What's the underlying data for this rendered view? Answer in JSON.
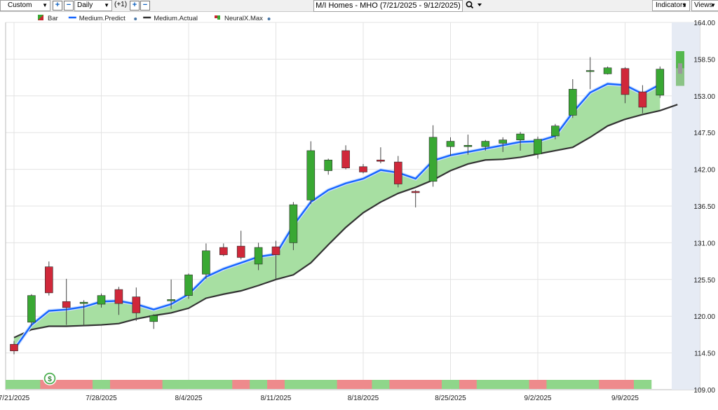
{
  "toolbar": {
    "period": "Custom",
    "interval": "Daily",
    "offset": "(+1)",
    "title": "M/I Homes - MHO (7/21/2025 - 9/12/2025)",
    "indicators": "Indicators",
    "views": "Views",
    "dropdown_glyph": "▼"
  },
  "chart_data": {
    "type": "candlestick",
    "symbol": "MHO",
    "legend": [
      {
        "name": "Bar",
        "color": "#c8272f"
      },
      {
        "name": "Medium.Predict",
        "color": "#1565ff"
      },
      {
        "name": "Medium.Actual",
        "color": "#333333"
      },
      {
        "name": "NeuralX.Max",
        "color": "#39a833"
      }
    ],
    "y_axis": {
      "min": 109.0,
      "max": 164.0,
      "ticks": [
        "164.00",
        "158.50",
        "153.00",
        "147.50",
        "142.00",
        "136.50",
        "131.00",
        "125.50",
        "120.00",
        "114.50",
        "109.00"
      ]
    },
    "x_axis": {
      "ticks": [
        "7/21/2025",
        "7/28/2025",
        "8/4/2025",
        "8/11/2025",
        "8/18/2025",
        "8/25/2025",
        "9/2/2025",
        "9/9/2025"
      ]
    },
    "bars": [
      {
        "date": "7/21/2025",
        "o": 115.8,
        "h": 116.3,
        "l": 114.3,
        "c": 114.8
      },
      {
        "date": "7/22/2025",
        "o": 119.1,
        "h": 123.3,
        "l": 118.5,
        "c": 123.1
      },
      {
        "date": "7/23/2025",
        "o": 127.4,
        "h": 128.2,
        "l": 123.1,
        "c": 123.5
      },
      {
        "date": "7/24/2025",
        "o": 122.2,
        "h": 125.6,
        "l": 118.7,
        "c": 121.3
      },
      {
        "date": "7/25/2025",
        "o": 121.9,
        "h": 122.4,
        "l": 118.6,
        "c": 122.1
      },
      {
        "date": "7/28/2025",
        "o": 121.8,
        "h": 123.4,
        "l": 121.3,
        "c": 123.1
      },
      {
        "date": "7/29/2025",
        "o": 124.0,
        "h": 124.4,
        "l": 120.2,
        "c": 121.9
      },
      {
        "date": "7/30/2025",
        "o": 122.9,
        "h": 124.3,
        "l": 119.3,
        "c": 120.5
      },
      {
        "date": "7/31/2025",
        "o": 119.2,
        "h": 120.3,
        "l": 118.1,
        "c": 120.1
      },
      {
        "date": "8/1/2025",
        "o": 122.3,
        "h": 125.5,
        "l": 121.1,
        "c": 122.5
      },
      {
        "date": "8/4/2025",
        "o": 123.1,
        "h": 126.4,
        "l": 122.6,
        "c": 126.2
      },
      {
        "date": "8/5/2025",
        "o": 126.3,
        "h": 130.9,
        "l": 125.6,
        "c": 129.8
      },
      {
        "date": "8/6/2025",
        "o": 130.3,
        "h": 130.9,
        "l": 129.0,
        "c": 129.2
      },
      {
        "date": "8/7/2025",
        "o": 130.5,
        "h": 132.8,
        "l": 128.5,
        "c": 128.8
      },
      {
        "date": "8/8/2025",
        "o": 127.8,
        "h": 131.0,
        "l": 126.9,
        "c": 130.3
      },
      {
        "date": "8/11/2025",
        "o": 130.4,
        "h": 131.3,
        "l": 125.6,
        "c": 129.2
      },
      {
        "date": "8/12/2025",
        "o": 131.0,
        "h": 137.1,
        "l": 129.9,
        "c": 136.7
      },
      {
        "date": "8/13/2025",
        "o": 137.4,
        "h": 146.2,
        "l": 136.8,
        "c": 144.8
      },
      {
        "date": "8/14/2025",
        "o": 141.8,
        "h": 143.6,
        "l": 141.2,
        "c": 143.4
      },
      {
        "date": "8/15/2025",
        "o": 144.8,
        "h": 145.6,
        "l": 142.0,
        "c": 142.2
      },
      {
        "date": "8/18/2025",
        "o": 142.4,
        "h": 142.8,
        "l": 141.4,
        "c": 141.6
      },
      {
        "date": "8/19/2025",
        "o": 143.4,
        "h": 145.3,
        "l": 142.9,
        "c": 143.2
      },
      {
        "date": "8/20/2025",
        "o": 143.1,
        "h": 144.0,
        "l": 139.3,
        "c": 139.8
      },
      {
        "date": "8/21/2025",
        "o": 138.7,
        "h": 138.9,
        "l": 136.3,
        "c": 138.5
      },
      {
        "date": "8/22/2025",
        "o": 140.2,
        "h": 148.6,
        "l": 139.4,
        "c": 146.8
      },
      {
        "date": "8/25/2025",
        "o": 145.4,
        "h": 146.8,
        "l": 144.0,
        "c": 146.2
      },
      {
        "date": "8/26/2025",
        "o": 145.4,
        "h": 147.2,
        "l": 144.2,
        "c": 145.6
      },
      {
        "date": "8/27/2025",
        "o": 145.4,
        "h": 146.4,
        "l": 144.8,
        "c": 146.2
      },
      {
        "date": "8/28/2025",
        "o": 145.9,
        "h": 146.8,
        "l": 144.6,
        "c": 146.4
      },
      {
        "date": "8/29/2025",
        "o": 146.4,
        "h": 147.6,
        "l": 144.8,
        "c": 147.3
      },
      {
        "date": "9/2/2025",
        "o": 144.3,
        "h": 146.9,
        "l": 143.6,
        "c": 146.5
      },
      {
        "date": "9/3/2025",
        "o": 147.0,
        "h": 148.8,
        "l": 146.5,
        "c": 148.5
      },
      {
        "date": "9/4/2025",
        "o": 150.1,
        "h": 155.5,
        "l": 149.7,
        "c": 154.0
      },
      {
        "date": "9/5/2025",
        "o": 156.8,
        "h": 158.8,
        "l": 154.0,
        "c": 156.8
      },
      {
        "date": "9/8/2025",
        "o": 156.3,
        "h": 157.4,
        "l": 156.2,
        "c": 157.2
      },
      {
        "date": "9/9/2025",
        "o": 157.1,
        "h": 157.3,
        "l": 151.9,
        "c": 153.2
      },
      {
        "date": "9/10/2025",
        "o": 153.6,
        "h": 154.6,
        "l": 150.4,
        "c": 151.3
      },
      {
        "date": "9/11/2025",
        "o": 153.1,
        "h": 157.4,
        "l": 152.7,
        "c": 157.0
      }
    ],
    "neuralx_max_bar": {
      "o": 154.5,
      "c": 159.7,
      "h": 159.7,
      "l": 154.5
    },
    "medium_predict": [
      115.0,
      118.7,
      120.8,
      121.0,
      121.4,
      122.2,
      122.3,
      121.8,
      121.0,
      121.8,
      123.3,
      125.9,
      127.1,
      128.0,
      128.9,
      129.3,
      133.6,
      137.1,
      138.9,
      139.9,
      140.6,
      141.9,
      141.5,
      140.6,
      143.3,
      144.1,
      144.6,
      145.1,
      145.6,
      146.1,
      146.2,
      147.0,
      150.5,
      153.5,
      154.8,
      154.6,
      153.3,
      154.7
    ],
    "medium_actual": [
      116.8,
      118.0,
      118.5,
      118.5,
      118.6,
      118.7,
      118.9,
      119.6,
      120.1,
      120.5,
      121.2,
      122.7,
      123.3,
      123.8,
      124.6,
      125.5,
      126.2,
      128.0,
      130.7,
      133.3,
      135.5,
      137.1,
      138.4,
      139.3,
      140.4,
      141.8,
      142.8,
      143.4,
      143.5,
      143.8,
      144.3,
      144.8,
      145.3,
      146.8,
      148.5,
      149.5,
      150.2,
      150.8,
      151.7
    ],
    "signal_strip": [
      "green",
      "green",
      "red",
      "red",
      "red",
      "green",
      "red",
      "red",
      "red",
      "green",
      "green",
      "green",
      "green",
      "red",
      "green",
      "red",
      "green",
      "green",
      "green",
      "red",
      "red",
      "green",
      "red",
      "red",
      "red",
      "green",
      "red",
      "green",
      "green",
      "green",
      "red",
      "green",
      "green",
      "green",
      "red",
      "red",
      "green"
    ],
    "signal_colors": {
      "green": "#8fd68a",
      "red": "#ee8a8c"
    },
    "dividend_marker": "$"
  }
}
